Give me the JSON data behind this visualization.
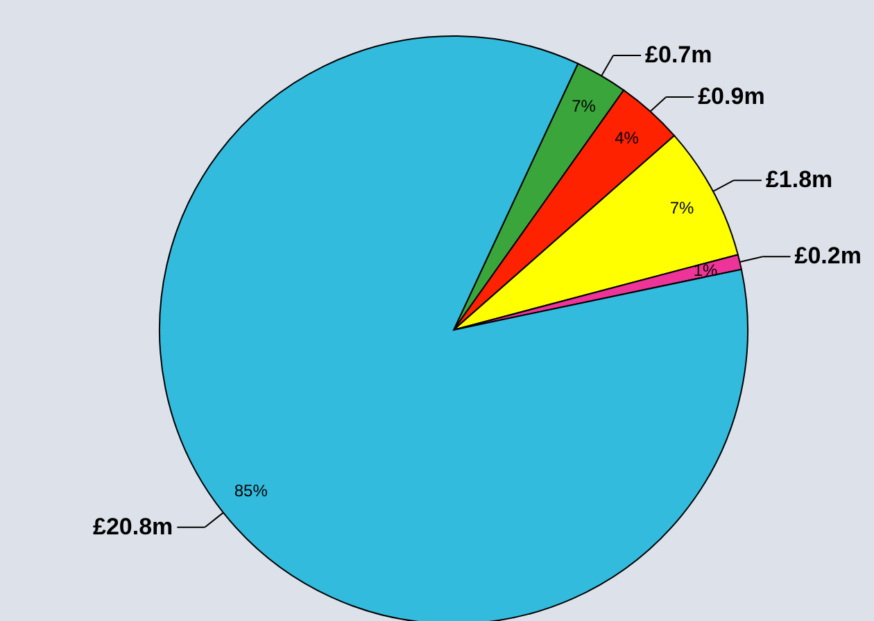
{
  "chart_data": {
    "type": "pie",
    "categories": [
      null,
      null,
      null,
      null,
      null
    ],
    "values": [
      0.7,
      0.9,
      1.8,
      0.2,
      20.8
    ],
    "colors": [
      "#3aa53a",
      "#ff2200",
      "#ffff00",
      "#ee3399",
      "#33bbdd"
    ],
    "value_labels": [
      "£0.7m",
      "£0.9m",
      "£1.8m",
      "£0.2m",
      "£20.8m"
    ],
    "annotations": [
      "7%",
      "4%",
      "7%",
      "1%",
      "85%"
    ]
  }
}
